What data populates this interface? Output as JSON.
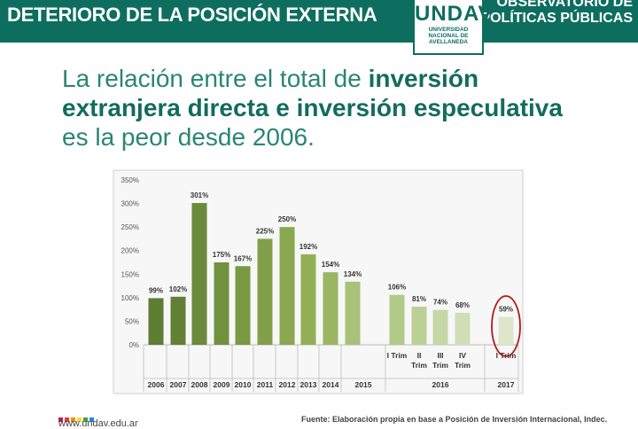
{
  "header": {
    "title": "DETERIORO DE LA POSICIÓN EXTERNA",
    "right_line1": "OBSERVATORIO DE",
    "right_line2": "POLÍTICAS PÚBLICAS"
  },
  "logo": {
    "word": "UNDAV",
    "sub1": "UNIVERSIDAD",
    "sub2": "NACIONAL DE",
    "sub3": "AVELLANEDA"
  },
  "headline": {
    "part1": "La relación entre el total de ",
    "bold1": "inversión",
    "bold2": "extranjera directa e inversión especulativa",
    "part2": "es la peor desde 2006."
  },
  "footer": {
    "url": "www.undav.edu.ar",
    "source": "Fuente: Elaboración propia en base a Posición de Inversión Internacional, Indec."
  },
  "colors": {
    "brand": "#0d6e5f",
    "highlight_circle": "#b01c1c"
  },
  "chart_data": {
    "type": "bar",
    "y_ticks": [
      "350%",
      "300%",
      "250%",
      "200%",
      "150%",
      "100%",
      "50%",
      "0%"
    ],
    "ylim": [
      0,
      350
    ],
    "grid": false,
    "bars": [
      {
        "cat": "2006",
        "value": 99,
        "label": "99%",
        "color": "#5e7e33"
      },
      {
        "cat": "2007",
        "value": 102,
        "label": "102%",
        "color": "#627f35"
      },
      {
        "cat": "2008",
        "value": 301,
        "label": "301%",
        "color": "#6b8a3b"
      },
      {
        "cat": "2009",
        "value": 175,
        "label": "175%",
        "color": "#71913f"
      },
      {
        "cat": "2010",
        "value": 167,
        "label": "167%",
        "color": "#799944"
      },
      {
        "cat": "2011",
        "value": 225,
        "label": "225%",
        "color": "#81a049"
      },
      {
        "cat": "2012",
        "value": 250,
        "label": "250%",
        "color": "#89a84f"
      },
      {
        "cat": "2013",
        "value": 192,
        "label": "192%",
        "color": "#92af56"
      },
      {
        "cat": "2014",
        "value": 154,
        "label": "154%",
        "color": "#9bb663"
      },
      {
        "cat": "2015",
        "value": 134,
        "label": "134%",
        "color": "#a9c178"
      },
      {
        "cat": "I Trim",
        "value": 106,
        "label": "106%",
        "color": "#b2c987"
      },
      {
        "cat": "II Trim",
        "value": 81,
        "label": "81%",
        "color": "#bcd096"
      },
      {
        "cat": "III Trim",
        "value": 74,
        "label": "74%",
        "color": "#c6d7a6"
      },
      {
        "cat": "IV Trim",
        "value": 68,
        "label": "68%",
        "color": "#d0ddb6"
      },
      {
        "cat": "I Trim",
        "value": 59,
        "label": "59%",
        "color": "#dde6cb"
      }
    ],
    "sub_labels": [
      {
        "lines": [
          "I Trim"
        ]
      },
      {
        "lines": [
          "II",
          "Trim"
        ]
      },
      {
        "lines": [
          "III",
          "Trim"
        ]
      },
      {
        "lines": [
          "IV",
          "Trim"
        ]
      },
      {
        "lines": [
          "I Trim"
        ]
      }
    ],
    "group_labels": [
      "2015",
      "2016",
      "2017"
    ],
    "highlight": "2017"
  }
}
